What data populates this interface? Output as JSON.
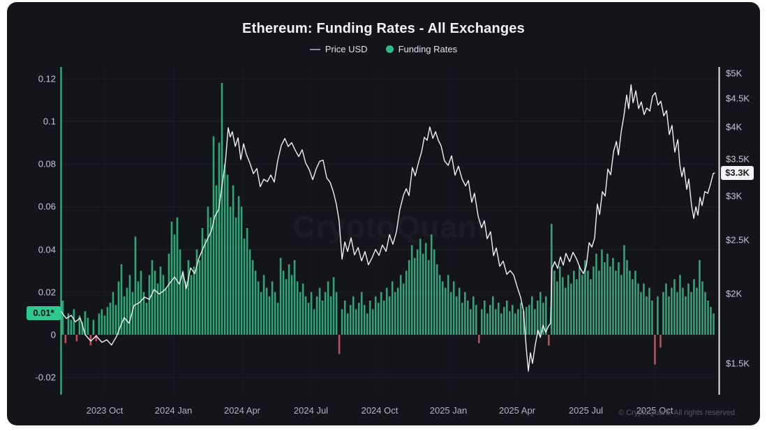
{
  "title": "Ethereum: Funding Rates - All Exchanges",
  "legend": [
    {
      "label": "Price USD",
      "marker": "line-icon",
      "color": "#8e8e98"
    },
    {
      "label": "Funding Rates",
      "marker": "dot-icon",
      "color": "#2bbd85"
    }
  ],
  "watermark": "CryptoQuant",
  "footer": "© CryptoQuant. All rights reserved",
  "colors": {
    "background": "#14141b",
    "accent_green": "#2ec98e",
    "bar_positive": "#2aa876",
    "bar_negative": "#c34b5e",
    "price_line": "#f2f2f4",
    "right_axis": "#e8e8ec",
    "grid": "rgba(255,255,255,0.05)"
  },
  "axes": {
    "left": {
      "ticks": [
        0.12,
        0.1,
        0.08,
        0.06,
        0.04,
        0.02,
        0,
        -0.02
      ],
      "current_badge": "0.01*",
      "current_value": 0.01
    },
    "right": {
      "ticks": [
        {
          "label": "$5K",
          "value": 5000
        },
        {
          "label": "$4.5K",
          "value": 4500
        },
        {
          "label": "$4K",
          "value": 4000
        },
        {
          "label": "$3.5K",
          "value": 3500
        },
        {
          "label": "$3K",
          "value": 3000
        },
        {
          "label": "$2.5K",
          "value": 2500
        },
        {
          "label": "$2K",
          "value": 2000
        },
        {
          "label": "$1.5K",
          "value": 1500
        }
      ],
      "current_badge": "$3.3K",
      "current_value": 3300,
      "scale": "log"
    },
    "x": {
      "unit": "months since 2023-10-01",
      "ticks": [
        {
          "label": "2023 Oct",
          "m": 0
        },
        {
          "label": "2024 Jan",
          "m": 3
        },
        {
          "label": "2024 Apr",
          "m": 6
        },
        {
          "label": "2024 Jul",
          "m": 9
        },
        {
          "label": "2024 Oct",
          "m": 12
        },
        {
          "label": "2025 Jan",
          "m": 15
        },
        {
          "label": "2025 Apr",
          "m": 18
        },
        {
          "label": "2025 Jul",
          "m": 21
        },
        {
          "label": "2025 Oct",
          "m": 24
        }
      ]
    }
  },
  "chart_data": {
    "type": "mixed",
    "subtypes": {
      "price_usd": "line",
      "funding_rates": "bar"
    },
    "left_axis_range": [
      -0.028,
      0.126
    ],
    "x_range_months": [
      -1.9,
      26.7
    ],
    "price": {
      "name": "Price USD",
      "points": [
        [
          -1.89,
          1857
        ],
        [
          -1.68,
          1806
        ],
        [
          -1.46,
          1841
        ],
        [
          -1.28,
          1775
        ],
        [
          -1.07,
          1816
        ],
        [
          -0.85,
          1677
        ],
        [
          -0.61,
          1644
        ],
        [
          -0.37,
          1690
        ],
        [
          -0.12,
          1630
        ],
        [
          0.09,
          1658
        ],
        [
          0.3,
          1607
        ],
        [
          0.52,
          1677
        ],
        [
          0.7,
          1765
        ],
        [
          0.85,
          1806
        ],
        [
          1.07,
          1775
        ],
        [
          1.28,
          1894
        ],
        [
          1.52,
          1930
        ],
        [
          1.74,
          1986
        ],
        [
          1.95,
          1948
        ],
        [
          2.16,
          2043
        ],
        [
          2.38,
          1986
        ],
        [
          2.62,
          2032
        ],
        [
          2.83,
          2102
        ],
        [
          3.05,
          2138
        ],
        [
          3.26,
          2090
        ],
        [
          3.41,
          2174
        ],
        [
          3.56,
          2043
        ],
        [
          3.75,
          2242
        ],
        [
          3.93,
          2168
        ],
        [
          4.11,
          2325
        ],
        [
          4.3,
          2405
        ],
        [
          4.48,
          2508
        ],
        [
          4.66,
          2616
        ],
        [
          4.81,
          2752
        ],
        [
          4.97,
          2846
        ],
        [
          5.12,
          3111
        ],
        [
          5.27,
          3465
        ],
        [
          5.39,
          4013
        ],
        [
          5.48,
          3825
        ],
        [
          5.57,
          3934
        ],
        [
          5.7,
          3667
        ],
        [
          5.82,
          3825
        ],
        [
          5.94,
          3516
        ],
        [
          6.06,
          3719
        ],
        [
          6.18,
          3585
        ],
        [
          6.34,
          3417
        ],
        [
          6.49,
          3295
        ],
        [
          6.64,
          3388
        ],
        [
          6.79,
          3111
        ],
        [
          6.94,
          3230
        ],
        [
          7.1,
          3167
        ],
        [
          7.25,
          3276
        ],
        [
          7.4,
          3203
        ],
        [
          7.55,
          3465
        ],
        [
          7.71,
          3719
        ],
        [
          7.86,
          3790
        ],
        [
          8.01,
          3688
        ],
        [
          8.16,
          3772
        ],
        [
          8.32,
          3616
        ],
        [
          8.47,
          3548
        ],
        [
          8.62,
          3616
        ],
        [
          8.77,
          3446
        ],
        [
          8.93,
          3369
        ],
        [
          9.08,
          3203
        ],
        [
          9.23,
          3369
        ],
        [
          9.38,
          3446
        ],
        [
          9.53,
          3485
        ],
        [
          9.69,
          3258
        ],
        [
          9.84,
          3167
        ],
        [
          9.99,
          3053
        ],
        [
          10.11,
          2886
        ],
        [
          10.23,
          2709
        ],
        [
          10.36,
          2325
        ],
        [
          10.48,
          2473
        ],
        [
          10.6,
          2392
        ],
        [
          10.75,
          2508
        ],
        [
          10.9,
          2351
        ],
        [
          11.06,
          2439
        ],
        [
          11.21,
          2286
        ],
        [
          11.36,
          2392
        ],
        [
          11.51,
          2242
        ],
        [
          11.67,
          2325
        ],
        [
          11.82,
          2421
        ],
        [
          11.97,
          2338
        ],
        [
          12.12,
          2457
        ],
        [
          12.28,
          2371
        ],
        [
          12.43,
          2558
        ],
        [
          12.58,
          2473
        ],
        [
          12.73,
          2580
        ],
        [
          12.88,
          2846
        ],
        [
          13.04,
          2993
        ],
        [
          13.16,
          3096
        ],
        [
          13.28,
          3028
        ],
        [
          13.43,
          3369
        ],
        [
          13.55,
          3276
        ],
        [
          13.71,
          3446
        ],
        [
          13.83,
          3606
        ],
        [
          13.95,
          3857
        ],
        [
          14.07,
          3772
        ],
        [
          14.19,
          4013
        ],
        [
          14.32,
          3790
        ],
        [
          14.44,
          3923
        ],
        [
          14.56,
          3810
        ],
        [
          14.68,
          3688
        ],
        [
          14.83,
          3485
        ],
        [
          14.99,
          3388
        ],
        [
          15.14,
          3548
        ],
        [
          15.29,
          3295
        ],
        [
          15.44,
          3388
        ],
        [
          15.6,
          3230
        ],
        [
          15.75,
          3111
        ],
        [
          15.87,
          3203
        ],
        [
          16.02,
          2944
        ],
        [
          16.14,
          3028
        ],
        [
          16.3,
          2767
        ],
        [
          16.45,
          2616
        ],
        [
          16.57,
          2710
        ],
        [
          16.69,
          2530
        ],
        [
          16.84,
          2580
        ],
        [
          16.97,
          2352
        ],
        [
          17.09,
          2405
        ],
        [
          17.24,
          2242
        ],
        [
          17.39,
          2306
        ],
        [
          17.55,
          2162
        ],
        [
          17.7,
          2210
        ],
        [
          17.85,
          2149
        ],
        [
          18,
          2060
        ],
        [
          18.15,
          1986
        ],
        [
          18.28,
          1857
        ],
        [
          18.4,
          1598
        ],
        [
          18.49,
          1442
        ],
        [
          18.58,
          1566
        ],
        [
          18.67,
          1508
        ],
        [
          18.79,
          1612
        ],
        [
          18.91,
          1726
        ],
        [
          19.01,
          1658
        ],
        [
          19.13,
          1755
        ],
        [
          19.25,
          1716
        ],
        [
          19.37,
          1746
        ],
        [
          19.46,
          1775
        ],
        [
          19.52,
          2210
        ],
        [
          19.64,
          2286
        ],
        [
          19.77,
          2237
        ],
        [
          19.89,
          2325
        ],
        [
          20.01,
          2260
        ],
        [
          20.13,
          2352
        ],
        [
          20.29,
          2286
        ],
        [
          20.44,
          2392
        ],
        [
          20.59,
          2306
        ],
        [
          20.74,
          2237
        ],
        [
          20.89,
          2162
        ],
        [
          21.02,
          2248
        ],
        [
          21.14,
          2490
        ],
        [
          21.26,
          2421
        ],
        [
          21.38,
          2529
        ],
        [
          21.5,
          2886
        ],
        [
          21.6,
          2780
        ],
        [
          21.72,
          3078
        ],
        [
          21.84,
          2993
        ],
        [
          21.96,
          3369
        ],
        [
          22.08,
          3258
        ],
        [
          22.21,
          3616
        ],
        [
          22.33,
          3790
        ],
        [
          22.42,
          3548
        ],
        [
          22.54,
          3934
        ],
        [
          22.66,
          4162
        ],
        [
          22.78,
          4567
        ],
        [
          22.87,
          4342
        ],
        [
          22.97,
          4751
        ],
        [
          23.06,
          4438
        ],
        [
          23.18,
          4620
        ],
        [
          23.3,
          4317
        ],
        [
          23.42,
          4466
        ],
        [
          23.54,
          4197
        ],
        [
          23.66,
          4342
        ],
        [
          23.79,
          4245
        ],
        [
          23.91,
          4545
        ],
        [
          24.03,
          4641
        ],
        [
          24.15,
          4366
        ],
        [
          24.27,
          4466
        ],
        [
          24.4,
          4162
        ],
        [
          24.52,
          4281
        ],
        [
          24.64,
          3901
        ],
        [
          24.76,
          4013
        ],
        [
          24.88,
          3616
        ],
        [
          25.01,
          3772
        ],
        [
          25.1,
          3417
        ],
        [
          25.19,
          3276
        ],
        [
          25.28,
          3369
        ],
        [
          25.4,
          3096
        ],
        [
          25.49,
          3203
        ],
        [
          25.61,
          2886
        ],
        [
          25.71,
          2753
        ],
        [
          25.8,
          2863
        ],
        [
          25.89,
          2781
        ],
        [
          25.98,
          2968
        ],
        [
          26.07,
          2886
        ],
        [
          26.19,
          3078
        ],
        [
          26.32,
          3028
        ],
        [
          26.44,
          3167
        ],
        [
          26.56,
          3276
        ],
        [
          26.62,
          3304
        ]
      ]
    },
    "funding": {
      "name": "Funding Rates",
      "start_m": -1.83,
      "step_m": 0.1219,
      "values": [
        0.016,
        -0.004,
        0.01,
        0.007,
        0.012,
        -0.003,
        0.009,
        0.006,
        0.011,
        0.008,
        -0.005,
        0.007,
        -0.003,
        0.01,
        0.012,
        0.009,
        0.013,
        0.015,
        0.02,
        0.014,
        0.025,
        0.033,
        0.018,
        0.022,
        0.028,
        0.02,
        0.046,
        0.025,
        0.03,
        0.02,
        0.015,
        0.028,
        0.035,
        0.03,
        0.024,
        0.032,
        0.028,
        0.022,
        0.038,
        0.053,
        0.047,
        0.055,
        0.04,
        0.03,
        0.025,
        0.035,
        0.028,
        0.032,
        0.04,
        0.035,
        0.05,
        0.045,
        0.06,
        0.055,
        0.093,
        0.07,
        0.09,
        0.118,
        0.08,
        0.075,
        0.06,
        0.07,
        0.055,
        0.065,
        0.06,
        0.045,
        0.05,
        0.04,
        0.035,
        0.03,
        0.025,
        0.02,
        0.028,
        0.022,
        0.018,
        0.025,
        0.02,
        0.015,
        0.036,
        0.03,
        0.026,
        0.033,
        0.028,
        0.035,
        0.025,
        0.02,
        0.024,
        0.018,
        0.015,
        0.02,
        0.012,
        0.018,
        0.022,
        0.016,
        0.02,
        0.025,
        0.018,
        0.027,
        0.02,
        -0.009,
        0.012,
        0.016,
        0.01,
        0.014,
        0.018,
        0.012,
        0.015,
        0.02,
        0.014,
        0.01,
        0.016,
        0.012,
        0.018,
        0.015,
        0.02,
        0.016,
        0.022,
        0.018,
        0.025,
        0.02,
        0.022,
        0.028,
        0.024,
        0.03,
        0.035,
        0.042,
        0.036,
        0.04,
        0.045,
        0.038,
        0.043,
        0.035,
        0.047,
        0.04,
        0.033,
        0.028,
        0.025,
        0.022,
        0.028,
        0.02,
        0.025,
        0.018,
        0.022,
        0.015,
        0.02,
        0.016,
        0.012,
        0.018,
        0.014,
        -0.004,
        0.012,
        0.016,
        0.01,
        0.014,
        0.018,
        0.012,
        0.015,
        0.01,
        0.013,
        0.016,
        0.011,
        0.014,
        0.01,
        0.012,
        0.015,
        0.011,
        0.013,
        0.014,
        0.018,
        0.012,
        0.016,
        0.02,
        0.015,
        0.018,
        -0.005,
        0.052,
        0.03,
        0.025,
        0.032,
        0.027,
        0.022,
        0.028,
        0.024,
        0.03,
        0.026,
        0.032,
        0.028,
        0.035,
        0.03,
        0.026,
        0.032,
        0.038,
        0.03,
        0.04,
        0.034,
        0.038,
        0.032,
        0.036,
        0.03,
        0.034,
        0.028,
        0.042,
        0.035,
        0.03,
        0.026,
        0.03,
        0.024,
        0.02,
        0.024,
        0.018,
        0.022,
        0.016,
        -0.014,
        0.018,
        -0.006,
        0.02,
        0.024,
        0.018,
        0.022,
        0.026,
        0.02,
        0.028,
        0.022,
        0.018,
        0.024,
        0.02,
        0.026,
        0.022,
        0.035,
        0.025,
        0.02,
        0.016,
        0.013,
        0.01
      ]
    }
  }
}
